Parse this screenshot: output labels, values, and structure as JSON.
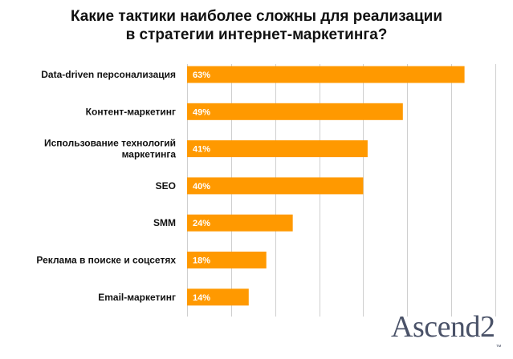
{
  "chart_data": {
    "type": "bar",
    "orientation": "horizontal",
    "title": [
      "Какие тактики наиболее сложны для реализации",
      "в стратегии интернет-маркетинга?"
    ],
    "categories": [
      [
        "Data-driven персонализация"
      ],
      [
        "Контент-маркетинг"
      ],
      [
        "Использование технологий",
        "маркетинга"
      ],
      [
        "SEO"
      ],
      [
        "SMM"
      ],
      [
        "Реклама в поиске и соцсетях"
      ],
      [
        "Email-маркетинг"
      ]
    ],
    "values": [
      63,
      49,
      41,
      40,
      24,
      18,
      14
    ],
    "value_labels": [
      "63%",
      "49%",
      "41%",
      "40%",
      "24%",
      "18%",
      "14%"
    ],
    "xlim": [
      0,
      70
    ],
    "grid": true,
    "colors": {
      "bar": "#FF9900",
      "grid": "#cfcfcf"
    }
  },
  "logo": {
    "text": "Ascend2",
    "trademark": "™"
  }
}
